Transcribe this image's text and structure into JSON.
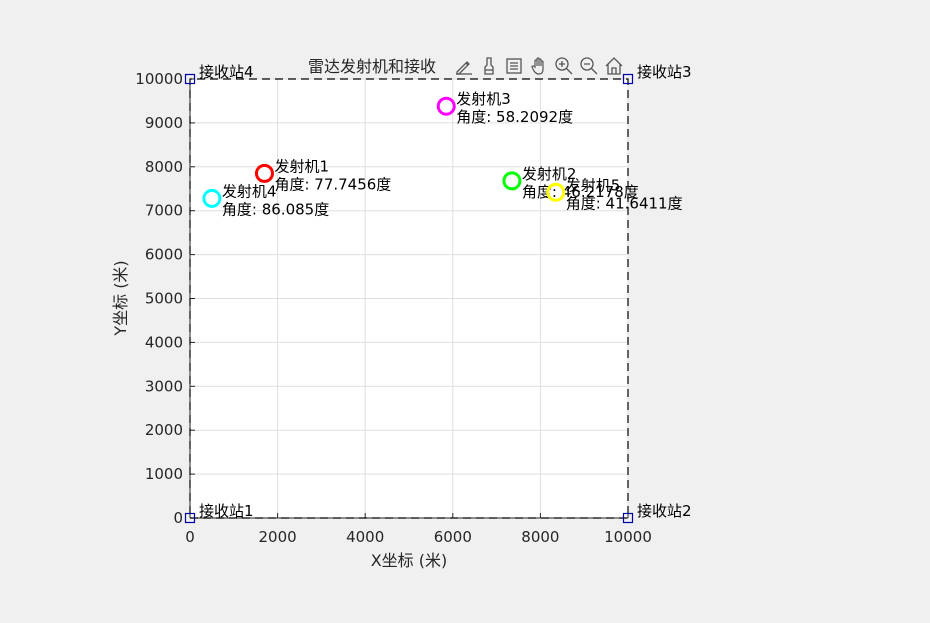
{
  "toolbar": {
    "icons": [
      "export-icon",
      "brush-icon",
      "legend-icon",
      "pan-icon",
      "zoom-in-icon",
      "zoom-out-icon",
      "home-icon"
    ]
  },
  "chart_data": {
    "type": "scatter",
    "title": "雷达发射机和接收",
    "xlabel": "X坐标 (米)",
    "ylabel": "Y坐标 (米)",
    "xlim": [
      0,
      10000
    ],
    "ylim": [
      0,
      10000
    ],
    "xticks": [
      "0",
      "2000",
      "4000",
      "6000",
      "8000",
      "10000"
    ],
    "yticks": [
      "0",
      "1000",
      "2000",
      "3000",
      "4000",
      "5000",
      "6000",
      "7000",
      "8000",
      "9000",
      "10000"
    ],
    "grid": true,
    "boundary": {
      "style": "dashed",
      "color": "#000000"
    },
    "receivers": [
      {
        "label": "接收站1",
        "x": 0,
        "y": 0
      },
      {
        "label": "接收站2",
        "x": 10000,
        "y": 0
      },
      {
        "label": "接收站3",
        "x": 10000,
        "y": 10000
      },
      {
        "label": "接收站4",
        "x": 0,
        "y": 10000
      }
    ],
    "receiver_color": "#0000aa",
    "transmitters": [
      {
        "name": "发射机1",
        "angle_text": "角度: 77.7456度",
        "x": 1700,
        "y": 7850,
        "color": "#ff0000"
      },
      {
        "name": "发射机2",
        "angle_text": "角度: 46.2178度",
        "x": 7350,
        "y": 7680,
        "color": "#00ff00"
      },
      {
        "name": "发射机3",
        "angle_text": "角度: 58.2092度",
        "x": 5850,
        "y": 9380,
        "color": "#ff00ff"
      },
      {
        "name": "发射机4",
        "angle_text": "角度: 86.085度",
        "x": 500,
        "y": 7280,
        "color": "#00ffff"
      },
      {
        "name": "发射机5",
        "angle_text": "角度: 41.6411度",
        "x": 8350,
        "y": 7420,
        "color": "#ffff00"
      }
    ]
  }
}
